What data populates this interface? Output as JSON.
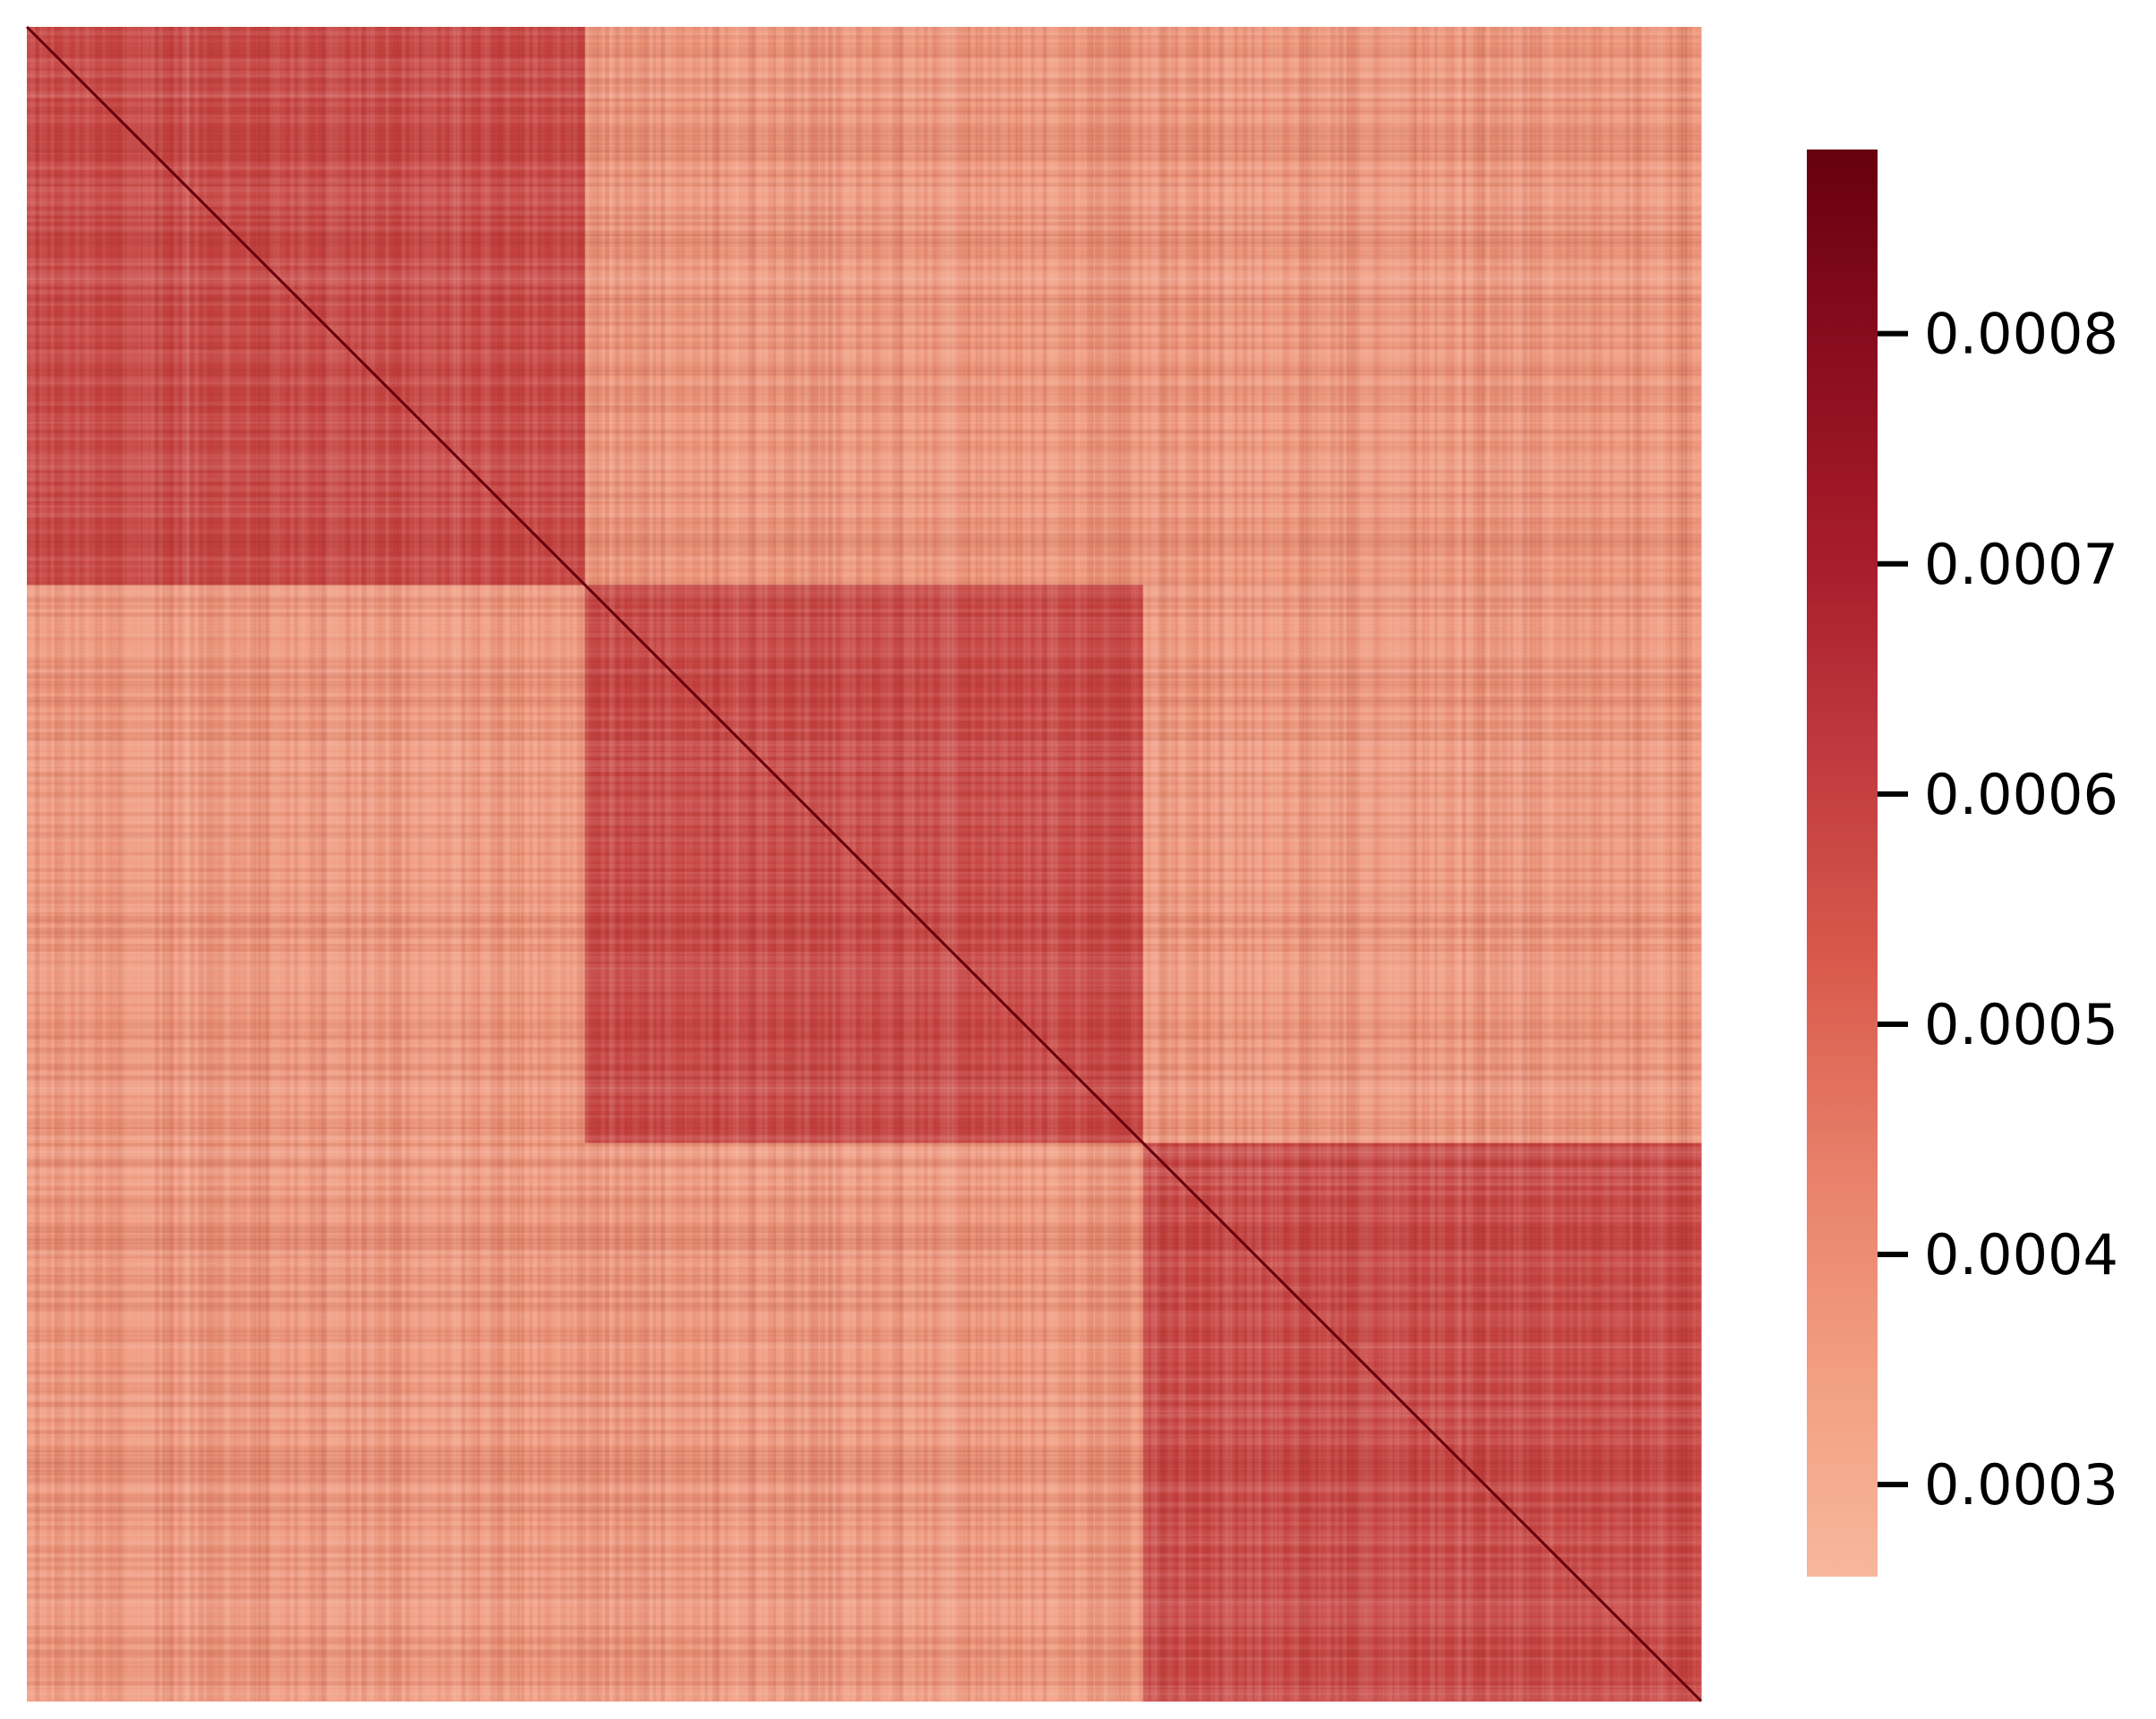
{
  "chart_data": {
    "type": "heatmap",
    "title": "",
    "xlabel": "",
    "ylabel": "",
    "description_blocks": 3,
    "block_matrix": [
      [
        0.00058,
        0.00036,
        0.00036
      ],
      [
        0.00036,
        0.00058,
        0.00036
      ],
      [
        0.00036,
        0.00036,
        0.00058
      ]
    ],
    "diagonal_value": 0.00088,
    "noise_amplitude": 2.5e-05,
    "colorbar": {
      "range": [
        0.00026,
        0.00088
      ],
      "ticks": [
        0.0003,
        0.0004,
        0.0005,
        0.0006,
        0.0007,
        0.0008
      ],
      "tick_labels": [
        "0.0003",
        "0.0004",
        "0.0005",
        "0.0006",
        "0.0007",
        "0.0008"
      ],
      "colormap": "Reds",
      "color_stops": [
        "#f7b79c",
        "#f29e81",
        "#e8806a",
        "#d95a4c",
        "#c03b3f",
        "#a81c2a",
        "#8a0d1e",
        "#67000d"
      ]
    },
    "grid": false,
    "axes_visible": false
  }
}
